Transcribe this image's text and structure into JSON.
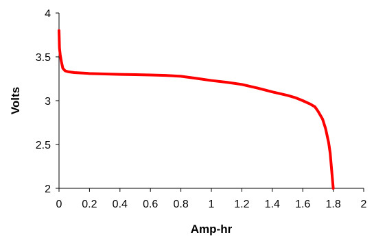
{
  "chart_data": {
    "type": "line",
    "title": "",
    "xlabel": "Amp-hr",
    "ylabel": "Volts",
    "xlim": [
      0,
      2
    ],
    "ylim": [
      2,
      4
    ],
    "x_ticks": [
      "0",
      "0.2",
      "0.4",
      "0.6",
      "0.8",
      "1",
      "1.2",
      "1.4",
      "1.6",
      "1.8",
      "2"
    ],
    "y_ticks": [
      "2",
      "2.5",
      "3",
      "3.5",
      "4"
    ],
    "grid": false,
    "legend": "none",
    "series": [
      {
        "color": "#ff0000",
        "x": [
          0.0,
          0.003,
          0.008,
          0.015,
          0.025,
          0.04,
          0.06,
          0.1,
          0.2,
          0.3,
          0.4,
          0.5,
          0.6,
          0.7,
          0.8,
          0.9,
          1.0,
          1.1,
          1.2,
          1.3,
          1.4,
          1.5,
          1.55,
          1.6,
          1.65,
          1.68,
          1.7,
          1.73,
          1.75,
          1.77,
          1.78,
          1.79,
          1.795,
          1.8
        ],
        "y": [
          3.8,
          3.6,
          3.52,
          3.45,
          3.37,
          3.34,
          3.33,
          3.32,
          3.31,
          3.305,
          3.3,
          3.297,
          3.293,
          3.288,
          3.278,
          3.255,
          3.23,
          3.21,
          3.185,
          3.145,
          3.1,
          3.06,
          3.035,
          3.0,
          2.96,
          2.93,
          2.88,
          2.79,
          2.68,
          2.52,
          2.4,
          2.2,
          2.1,
          2.0
        ]
      }
    ]
  }
}
